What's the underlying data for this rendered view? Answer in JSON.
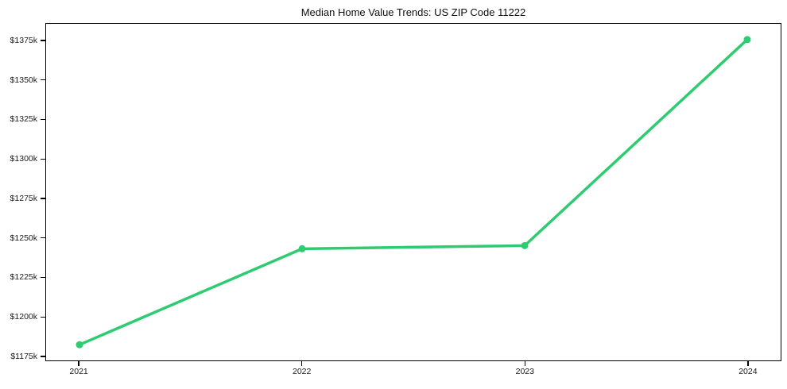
{
  "chart_data": {
    "type": "line",
    "title": "Median Home Value Trends: US ZIP Code 11222",
    "series": [
      {
        "name": "Median home value",
        "x": [
          2021,
          2022,
          2023,
          2024
        ],
        "values_k_usd": [
          1182,
          1243,
          1245,
          1376
        ]
      }
    ],
    "x_tick_labels": [
      "2021",
      "2022",
      "2023",
      "2024"
    ],
    "y_ticks_k_usd": [
      1175,
      1200,
      1225,
      1250,
      1275,
      1300,
      1325,
      1350,
      1375
    ],
    "y_tick_labels": [
      "$1175k",
      "$1200k",
      "$1225k",
      "$1250k",
      "$1275k",
      "$1300k",
      "$1325k",
      "$1350k",
      "$1375k"
    ],
    "xlim": [
      2020.85,
      2024.15
    ],
    "ylim_k_usd": [
      1172,
      1386
    ],
    "xlabel": "",
    "ylabel": "",
    "grid": false,
    "legend": "none",
    "marker": "circle",
    "line_color": "#2ecc71",
    "background_color": "#ffffff",
    "spine_color": "#000000",
    "text_color": "#1a1a1a"
  }
}
